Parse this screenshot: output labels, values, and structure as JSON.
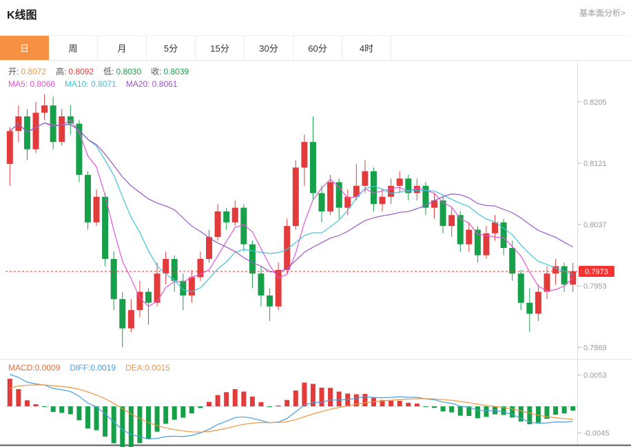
{
  "page": {
    "title": "K线图",
    "top_link": "基本面分析>"
  },
  "tabs": {
    "items": [
      "日",
      "周",
      "月",
      "5分",
      "15分",
      "30分",
      "60分",
      "4时"
    ],
    "active": "日"
  },
  "ohlc_legend": {
    "open_label": "开:",
    "open": "0.8072",
    "high_label": "高:",
    "high": "0.8092",
    "low_label": "低:",
    "low": "0.8030",
    "close_label": "收:",
    "close": "0.8039"
  },
  "ma_legend": {
    "ma5": "MA5: 0.8066",
    "ma10": "MA10: 0.8071",
    "ma20": "MA20: 0.8061"
  },
  "macd_legend": {
    "macd": "MACD:0.0009",
    "diff": "DIFF:0.0019",
    "dea": "DEA:0.0015"
  },
  "colors": {
    "up": "#e23b3b",
    "down": "#16a04a",
    "ma5": "#e255d5",
    "ma10": "#3ec3dc",
    "ma20": "#9a55c8",
    "diff": "#4a9ede",
    "dea": "#f0943c",
    "accent_tab": "#f79043",
    "price_badge": "#f53333",
    "axis_text": "#999999"
  },
  "chart_data": {
    "type": "candlestick",
    "title": "K线图",
    "y_axis": {
      "labels": [
        "0.8205",
        "0.8121",
        "0.8037",
        "0.7953",
        "0.7869"
      ],
      "values": [
        0.8205,
        0.8121,
        0.8037,
        0.7953,
        0.7869
      ]
    },
    "price_range": [
      0.7858,
      0.825
    ],
    "current_price": {
      "label": "0.7973",
      "value": 0.7973
    },
    "legend_values": {
      "open": 0.8072,
      "high": 0.8092,
      "low": 0.803,
      "close": 0.8039,
      "MA5": 0.8066,
      "MA10": 0.8071,
      "MA20": 0.8061
    },
    "candles": [
      [
        0.812,
        0.817,
        0.809,
        0.8165
      ],
      [
        0.8165,
        0.82,
        0.815,
        0.8185
      ],
      [
        0.8185,
        0.8195,
        0.8125,
        0.814
      ],
      [
        0.814,
        0.8205,
        0.8135,
        0.819
      ],
      [
        0.819,
        0.8215,
        0.818,
        0.82
      ],
      [
        0.82,
        0.8212,
        0.814,
        0.815
      ],
      [
        0.815,
        0.8195,
        0.8145,
        0.8185
      ],
      [
        0.8185,
        0.82,
        0.816,
        0.8175
      ],
      [
        0.8175,
        0.818,
        0.8095,
        0.8105
      ],
      [
        0.8105,
        0.811,
        0.803,
        0.804
      ],
      [
        0.804,
        0.8085,
        0.8035,
        0.8075
      ],
      [
        0.8075,
        0.808,
        0.798,
        0.799
      ],
      [
        0.799,
        0.8,
        0.792,
        0.7935
      ],
      [
        0.7935,
        0.7945,
        0.7869,
        0.7895
      ],
      [
        0.7895,
        0.7935,
        0.789,
        0.792
      ],
      [
        0.792,
        0.796,
        0.791,
        0.7945
      ],
      [
        0.7945,
        0.795,
        0.79,
        0.793
      ],
      [
        0.793,
        0.7985,
        0.7925,
        0.797
      ],
      [
        0.797,
        0.8,
        0.7955,
        0.799
      ],
      [
        0.799,
        0.7995,
        0.7945,
        0.796
      ],
      [
        0.796,
        0.797,
        0.792,
        0.794
      ],
      [
        0.794,
        0.7975,
        0.793,
        0.7965
      ],
      [
        0.7965,
        0.8,
        0.796,
        0.799
      ],
      [
        0.799,
        0.803,
        0.7985,
        0.802
      ],
      [
        0.802,
        0.8065,
        0.8015,
        0.8055
      ],
      [
        0.8055,
        0.806,
        0.803,
        0.804
      ],
      [
        0.804,
        0.807,
        0.8035,
        0.806
      ],
      [
        0.806,
        0.8065,
        0.8,
        0.801
      ],
      [
        0.801,
        0.8015,
        0.795,
        0.797
      ],
      [
        0.797,
        0.798,
        0.7925,
        0.794
      ],
      [
        0.794,
        0.795,
        0.7905,
        0.7925
      ],
      [
        0.7925,
        0.7985,
        0.792,
        0.7975
      ],
      [
        0.7975,
        0.8045,
        0.797,
        0.8035
      ],
      [
        0.8035,
        0.8125,
        0.803,
        0.8115
      ],
      [
        0.8115,
        0.816,
        0.809,
        0.815
      ],
      [
        0.815,
        0.8185,
        0.807,
        0.808
      ],
      [
        0.808,
        0.809,
        0.804,
        0.8055
      ],
      [
        0.8055,
        0.8105,
        0.805,
        0.8095
      ],
      [
        0.8095,
        0.81,
        0.8045,
        0.806
      ],
      [
        0.806,
        0.8085,
        0.805,
        0.8075
      ],
      [
        0.8075,
        0.812,
        0.807,
        0.809
      ],
      [
        0.809,
        0.8125,
        0.808,
        0.811
      ],
      [
        0.811,
        0.8115,
        0.8055,
        0.8065
      ],
      [
        0.8065,
        0.8085,
        0.8055,
        0.8075
      ],
      [
        0.8075,
        0.81,
        0.8065,
        0.809
      ],
      [
        0.809,
        0.811,
        0.808,
        0.81
      ],
      [
        0.81,
        0.8105,
        0.807,
        0.808
      ],
      [
        0.808,
        0.81,
        0.807,
        0.809
      ],
      [
        0.809,
        0.8095,
        0.805,
        0.806
      ],
      [
        0.806,
        0.808,
        0.8045,
        0.807
      ],
      [
        0.807,
        0.8075,
        0.8025,
        0.8035
      ],
      [
        0.8035,
        0.806,
        0.802,
        0.805
      ],
      [
        0.805,
        0.8055,
        0.8,
        0.801
      ],
      [
        0.801,
        0.804,
        0.8,
        0.803
      ],
      [
        0.803,
        0.8035,
        0.7985,
        0.7995
      ],
      [
        0.7995,
        0.8035,
        0.799,
        0.8025
      ],
      [
        0.8025,
        0.805,
        0.8015,
        0.804
      ],
      [
        0.804,
        0.8045,
        0.7995,
        0.8005
      ],
      [
        0.8005,
        0.8015,
        0.796,
        0.797
      ],
      [
        0.797,
        0.7975,
        0.792,
        0.793
      ],
      [
        0.793,
        0.795,
        0.789,
        0.7915
      ],
      [
        0.7915,
        0.7955,
        0.7905,
        0.7945
      ],
      [
        0.7945,
        0.798,
        0.7935,
        0.797
      ],
      [
        0.797,
        0.799,
        0.7955,
        0.798
      ],
      [
        0.798,
        0.7985,
        0.7945,
        0.7955
      ],
      [
        0.7955,
        0.7985,
        0.7945,
        0.7973
      ]
    ],
    "moving_averages": {
      "periods": [
        5,
        10,
        20
      ]
    },
    "macd": {
      "params": [
        12,
        26,
        9
      ],
      "legend_values": {
        "MACD": 0.0009,
        "DIFF": 0.0019,
        "DEA": 0.0015
      },
      "axis": {
        "labels": [
          "0.0053",
          "-0.0045"
        ],
        "values": [
          0.0053,
          -0.0045
        ]
      },
      "range": [
        -0.0056,
        0.007
      ]
    }
  }
}
